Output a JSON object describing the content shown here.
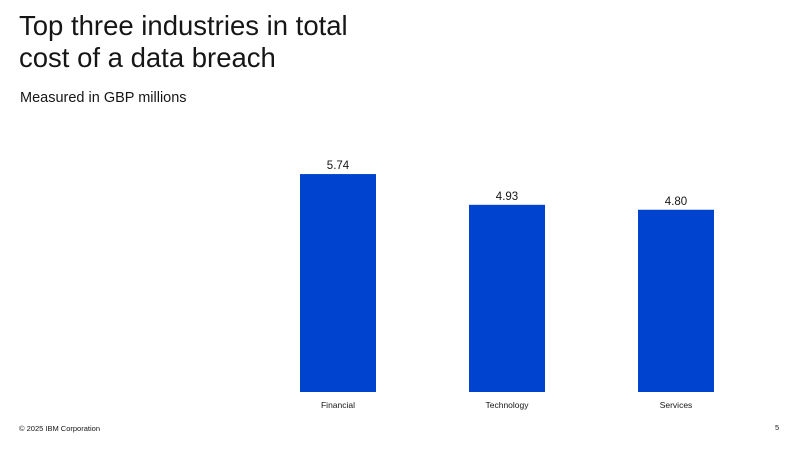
{
  "slide": {
    "title_line1": "Top three industries in total",
    "title_line2": "cost of a data breach",
    "subtitle": "Measured in GBP millions",
    "footer": "© 2025 IBM Corporation",
    "page_number": "5"
  },
  "colors": {
    "bar": "#0043ce",
    "text": "#161616",
    "background": "#ffffff"
  },
  "chart_data": {
    "type": "bar",
    "title": "Top three industries in total cost of a data breach",
    "subtitle": "Measured in GBP millions",
    "categories": [
      "Financial",
      "Technology",
      "Services"
    ],
    "values": [
      5.74,
      4.93,
      4.8
    ],
    "value_labels": [
      "5.74",
      "4.93",
      "4.80"
    ],
    "ylim": [
      0,
      6.4
    ],
    "grid": false,
    "legend": "none",
    "data_labels": "above-bars"
  }
}
